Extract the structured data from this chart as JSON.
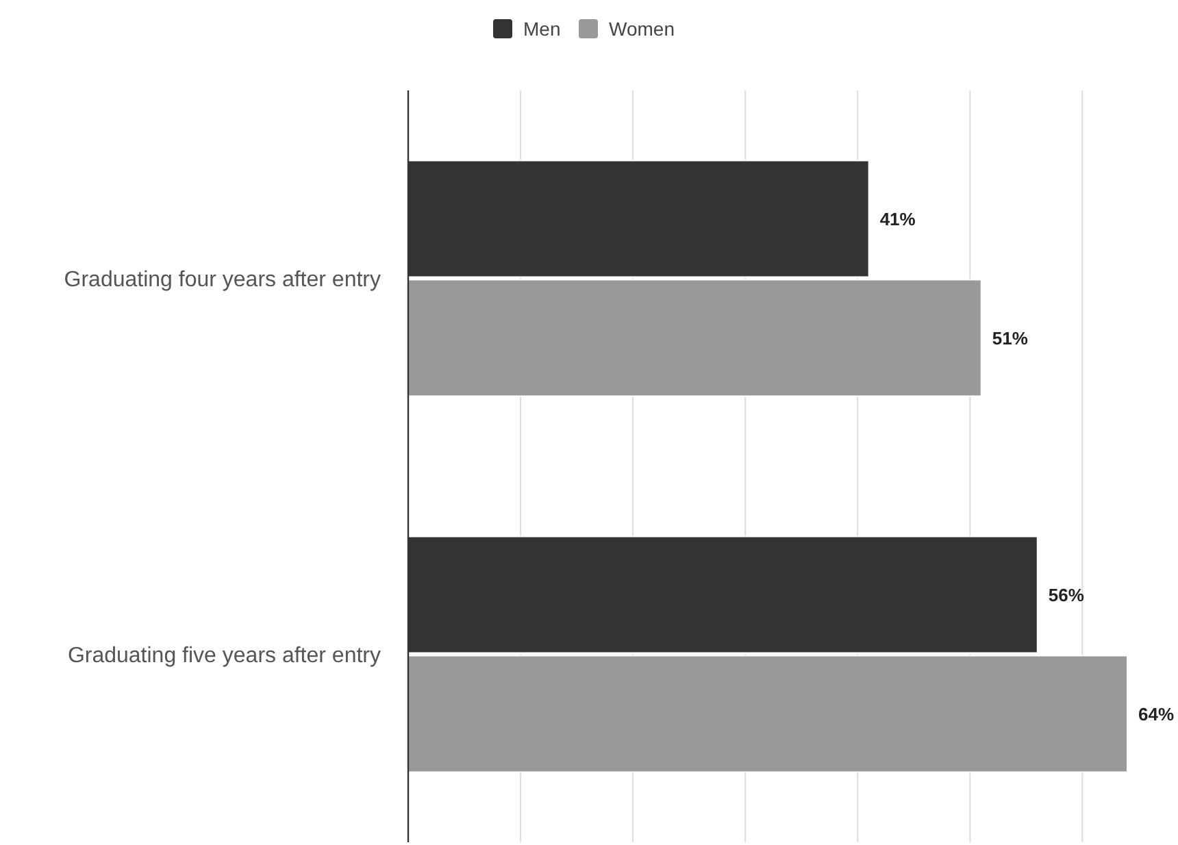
{
  "chart_data": {
    "type": "bar",
    "orientation": "horizontal",
    "categories": [
      "Graduating four years after entry",
      "Graduating five years after entry"
    ],
    "series": [
      {
        "name": "Men",
        "color": "#333333",
        "values": [
          41,
          56
        ],
        "value_labels": [
          "41%",
          "56%"
        ]
      },
      {
        "name": "Women",
        "color": "#999999",
        "values": [
          51,
          64
        ],
        "value_labels": [
          "51%",
          "64%"
        ]
      }
    ],
    "xticks": [
      {
        "value": 0,
        "label": null
      },
      {
        "value": 10,
        "label": null
      },
      {
        "value": 20,
        "label": null
      },
      {
        "value": 30,
        "label": null
      },
      {
        "value": 40,
        "label": null
      },
      {
        "value": 50,
        "label": null
      },
      {
        "value": 60,
        "label": null
      }
    ],
    "grid": "x",
    "legend": "top",
    "tick_labels": "y"
  }
}
